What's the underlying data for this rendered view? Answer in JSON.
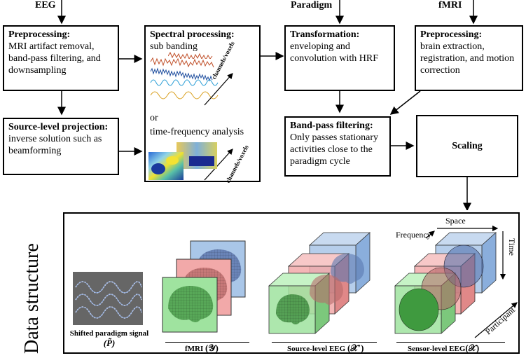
{
  "inputs": {
    "eeg": "EEG",
    "paradigm": "Paradigm",
    "fmri": "fMRI"
  },
  "boxes": {
    "preproc_eeg": {
      "title": "Preprocessing",
      "colon": ":",
      "body": "MRI artifact removal, band-pass filtering, and downsampling"
    },
    "source_proj": {
      "title": "Source-level projection:",
      "body": "inverse solution such as beamforming"
    },
    "spectral": {
      "title": "Spectral processing",
      "colon": ":",
      "line1": "sub banding",
      "or": "or",
      "line2": "time-frequency analysis",
      "axis1": "channels/voxels",
      "axis2": "channels/voxels"
    },
    "transformation": {
      "title": "Transformation",
      "colon": ":",
      "body": "enveloping and convolution with HRF"
    },
    "preproc_fmri": {
      "title": "Preprocessing",
      "colon": ":",
      "body": "brain extraction, registration, and motion correction"
    },
    "bandpass": {
      "title": "Band-pass filtering",
      "colon": ":",
      "body": "Only passes stationary activities close to the paradigm cycle"
    },
    "scaling": {
      "title": "Scaling"
    }
  },
  "data_structure": {
    "title": "Data structure",
    "paradigm_label": "Shifted paradigm signal",
    "paradigm_symbol": "(P̃)",
    "fmri_label": "fMRI",
    "fmri_symbol": "(𝒴)",
    "source_label": "Source-level EEG",
    "source_symbol": "(𝒳′)",
    "sensor_label": "Sensor-level EEG",
    "sensor_symbol": "(𝒳)",
    "axis_space": "Space",
    "axis_frequency": "Frequency",
    "axis_time": "Time",
    "axis_participant": "Participant"
  },
  "colors": {
    "blue": "#a9c6e8",
    "red": "#f2a9a9",
    "green": "#9fe39f",
    "panel_gray": "#666666"
  }
}
